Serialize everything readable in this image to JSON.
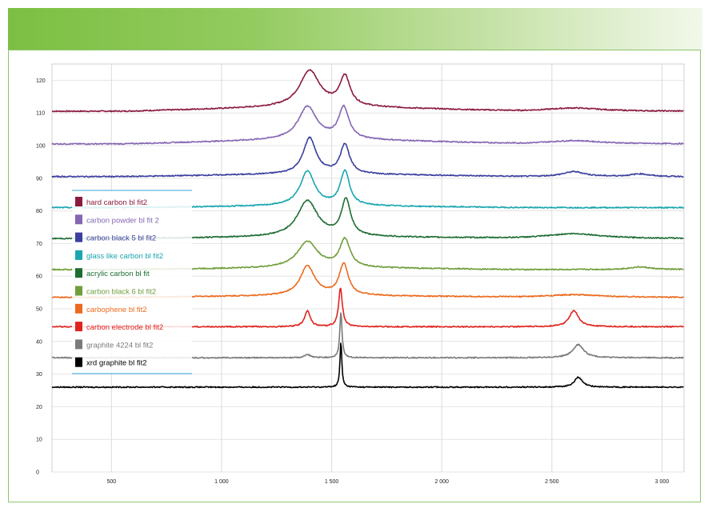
{
  "chart_data": {
    "type": "line",
    "title": "",
    "xlabel": "",
    "ylabel": "",
    "xlim": [
      530,
      3400
    ],
    "ylim": [
      0,
      125
    ],
    "x_ticks": [
      800,
      1300,
      1800,
      2300,
      2800,
      3300
    ],
    "x_tick_labels": [
      "500",
      "1 000",
      "1 500",
      "2 000",
      "2 500",
      "3 000"
    ],
    "y_ticks": [
      0,
      10,
      20,
      30,
      40,
      50,
      60,
      70,
      80,
      90,
      100,
      110,
      120
    ],
    "y_tick_labels": [
      "0",
      "10",
      "20",
      "30",
      "40",
      "50",
      "60",
      "70",
      "80",
      "90",
      "100",
      "110",
      "120"
    ],
    "grid": true,
    "legend_position": "left",
    "series": [
      {
        "name": "hard carbon bl fit2",
        "color": "#8b1a3e",
        "baseline": 110.5,
        "peaks": [
          [
            1700,
            11,
            55
          ],
          [
            1860,
            9,
            28
          ],
          [
            2900,
            1,
            150
          ]
        ],
        "tilt": 0.5
      },
      {
        "name": "carbon powder bl fit 2",
        "color": "#8466b3",
        "baseline": 100.5,
        "peaks": [
          [
            1690,
            10,
            50
          ],
          [
            1855,
            9.5,
            28
          ],
          [
            2900,
            1,
            150
          ]
        ],
        "tilt": 0.5
      },
      {
        "name": "carbon black 5 bl fit2",
        "color": "#3b3f9e",
        "baseline": 90.5,
        "peaks": [
          [
            1700,
            11,
            35
          ],
          [
            1860,
            9,
            25
          ],
          [
            2900,
            1.5,
            60
          ],
          [
            3200,
            0.8,
            50
          ]
        ],
        "tilt": 0.3
      },
      {
        "name": "glass like carbon bl fit2",
        "color": "#1aa6b0",
        "baseline": 81,
        "peaks": [
          [
            1690,
            10.5,
            40
          ],
          [
            1860,
            10.5,
            25
          ]
        ],
        "tilt": 0.2
      },
      {
        "name": "acrylic carbon bl fit",
        "color": "#1e6d33",
        "baseline": 71.5,
        "peaks": [
          [
            1690,
            11,
            55
          ],
          [
            1865,
            11,
            25
          ],
          [
            2900,
            1.5,
            150
          ]
        ],
        "tilt": 0.2
      },
      {
        "name": "carbon black 6 bl fit2",
        "color": "#6f9e3a",
        "baseline": 62,
        "peaks": [
          [
            1690,
            8,
            55
          ],
          [
            1860,
            8.5,
            28
          ],
          [
            3200,
            0.8,
            60
          ]
        ],
        "tilt": 0.2
      },
      {
        "name": "carbophene bl fit2",
        "color": "#ec6a1d",
        "baseline": 53.5,
        "peaks": [
          [
            1690,
            9,
            40
          ],
          [
            1855,
            9.5,
            25
          ],
          [
            2900,
            0.8,
            150
          ]
        ],
        "tilt": 0.2
      },
      {
        "name": "carbon electrode bl fit2",
        "color": "#e0241f",
        "baseline": 44.5,
        "peaks": [
          [
            1690,
            5,
            15
          ],
          [
            1840,
            12,
            10
          ],
          [
            2900,
            5,
            25
          ]
        ],
        "tilt": 0
      },
      {
        "name": "graphite 4224 bl fit2",
        "color": "#7a7a7a",
        "baseline": 35,
        "peaks": [
          [
            1690,
            1,
            15
          ],
          [
            1842,
            14,
            6
          ],
          [
            2920,
            4,
            30
          ]
        ],
        "tilt": 0
      },
      {
        "name": "xrd graphite bl fit2",
        "color": "#000000",
        "baseline": 26,
        "peaks": [
          [
            1842,
            14,
            5
          ],
          [
            2920,
            3,
            22
          ]
        ],
        "tilt": 0
      }
    ]
  }
}
